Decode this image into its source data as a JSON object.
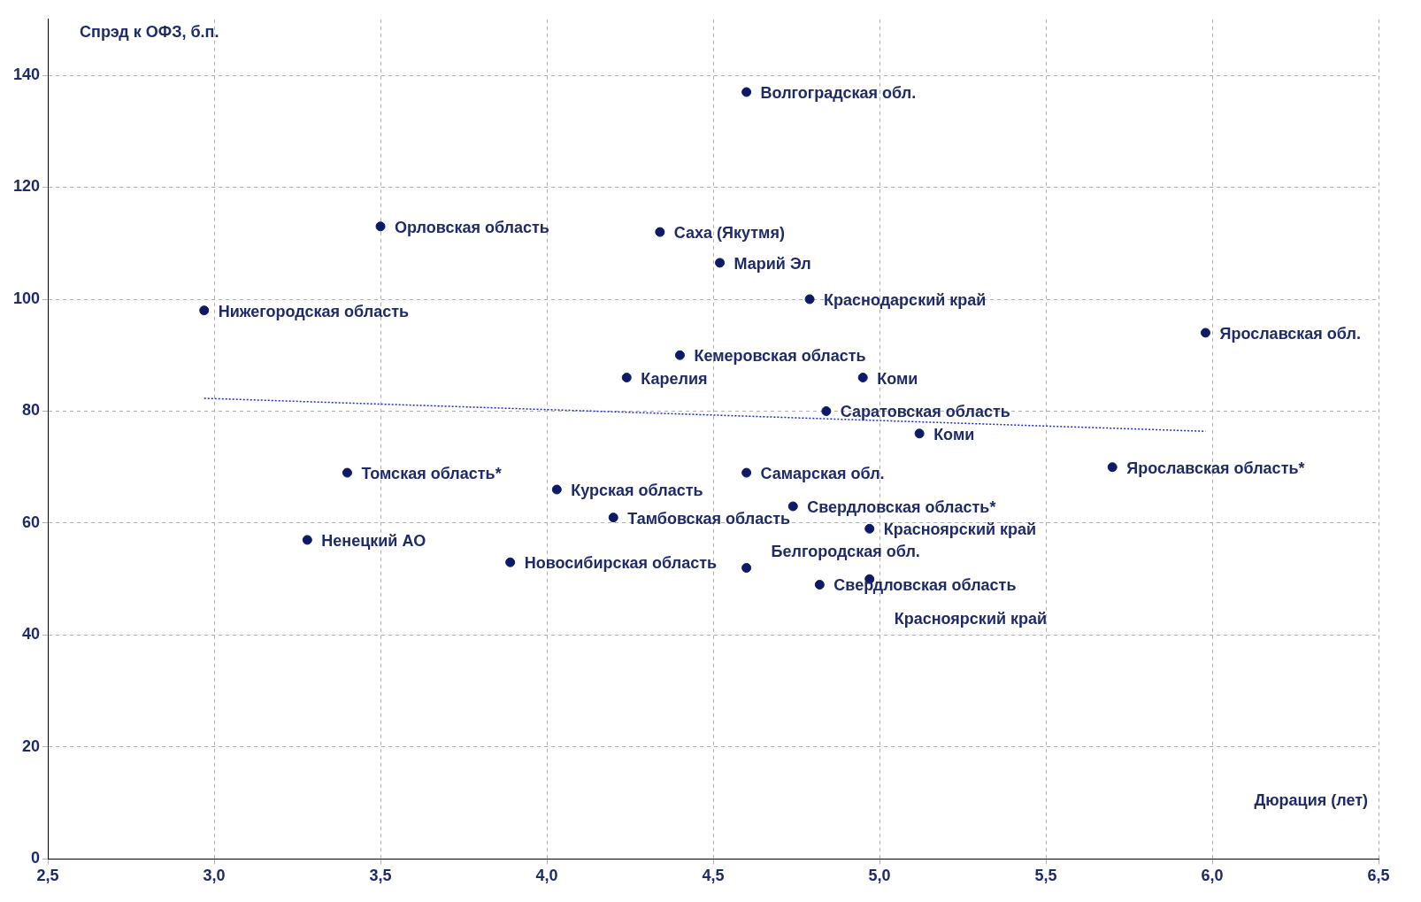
{
  "chart_data": {
    "type": "scatter",
    "xlabel": "Дюрация (лет)",
    "ylabel": "Спрэд к ОФЗ, б.п.",
    "xlim": [
      2.5,
      6.5
    ],
    "xticks": [
      {
        "value": 2.5,
        "label": "2,5"
      },
      {
        "value": 3,
        "label": "3,0"
      },
      {
        "value": 3.5,
        "label": "3,5"
      },
      {
        "value": 4,
        "label": "4,0"
      },
      {
        "value": 4.5,
        "label": "4,5"
      },
      {
        "value": 5,
        "label": "5,0"
      },
      {
        "value": 5.5,
        "label": "5,5"
      },
      {
        "value": 6,
        "label": "6,0"
      },
      {
        "value": 6.5,
        "label": "6,5"
      }
    ],
    "ylim": [
      0,
      150
    ],
    "yticks": [
      0,
      20,
      40,
      60,
      80,
      100,
      120,
      140
    ],
    "grid": true,
    "legend": false,
    "marker": "circle",
    "series": [
      {
        "color": "#0d1a66",
        "x": [
          4.6,
          3.5,
          4.34,
          4.52,
          4.79,
          2.97,
          5.98,
          4.4,
          4.24,
          4.95,
          4.84,
          5.12,
          3.4,
          4.6,
          5.7,
          4.03,
          4.74,
          4.2,
          4.97,
          3.28,
          3.89,
          4.6,
          4.97,
          4.82
        ],
        "values": [
          137,
          113,
          112,
          106.5,
          100,
          98,
          94,
          90,
          86,
          86,
          80,
          76,
          69,
          69,
          70,
          66,
          63,
          61,
          59,
          57,
          53,
          52,
          50,
          49
        ]
      },
      {
        "type": "line",
        "line_style": "dotted",
        "marker": "none",
        "color": "#1a2ccc",
        "x": [
          2.97,
          5.98
        ],
        "values": [
          82.3,
          76.4
        ]
      }
    ],
    "annotations": [
      {
        "text": "Волгоградская обл.",
        "x": 4.6,
        "y": 137
      },
      {
        "text": "Орловская область",
        "x": 3.5,
        "y": 113
      },
      {
        "text": "Саха (Якутмя)",
        "x": 4.34,
        "y": 112
      },
      {
        "text": "Марий Эл",
        "x": 4.52,
        "y": 106.5
      },
      {
        "text": "Краснодарский край",
        "x": 4.79,
        "y": 100
      },
      {
        "text": "Нижегородская область",
        "x": 2.97,
        "y": 98
      },
      {
        "text": "Ярославская обл.",
        "x": 5.98,
        "y": 94
      },
      {
        "text": "Кемеровская область",
        "x": 4.4,
        "y": 90
      },
      {
        "text": "Карелия",
        "x": 4.24,
        "y": 86
      },
      {
        "text": "Коми",
        "x": 4.95,
        "y": 86
      },
      {
        "text": "Саратовская область",
        "x": 4.84,
        "y": 80
      },
      {
        "text": "Коми",
        "x": 5.12,
        "y": 76
      },
      {
        "text": "Томская область*",
        "x": 3.4,
        "y": 69
      },
      {
        "text": "Самарская обл.",
        "x": 4.6,
        "y": 69
      },
      {
        "text": "Ярославская область*",
        "x": 5.7,
        "y": 70
      },
      {
        "text": "Курская область",
        "x": 4.03,
        "y": 66
      },
      {
        "text": "Свердловская область*",
        "x": 4.74,
        "y": 63
      },
      {
        "text": "Тамбовская область",
        "x": 4.2,
        "y": 61
      },
      {
        "text": "Красноярский край",
        "x": 4.97,
        "y": 59
      },
      {
        "text": "Ненецкий АО",
        "x": 3.28,
        "y": 57
      },
      {
        "text": "Новосибирская область",
        "x": 3.89,
        "y": 53
      },
      {
        "text": "Свердловская область",
        "x": 4.82,
        "y": 49
      },
      {
        "text": "Белгородская обл.",
        "x": 4.6,
        "y": 52
      },
      {
        "text": "Красноярский край",
        "x": 4.97,
        "y": 50
      }
    ]
  }
}
